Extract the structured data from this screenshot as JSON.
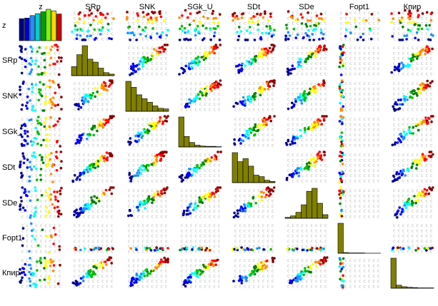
{
  "chart_data": {
    "type": "scatter-matrix",
    "variables": [
      "z",
      "SRp",
      "SNK",
      "SGk_U",
      "SDt",
      "SDe",
      "Fopt1",
      "Кпир"
    ],
    "row_labels": [
      "z",
      "SRp",
      "SNK",
      "SGk_",
      "SDt",
      "SDe",
      "Fopt1",
      "Кпир"
    ],
    "color_variable": "z",
    "color_scale": [
      "#00008b",
      "#0000ff",
      "#1e90ff",
      "#00ffff",
      "#00c000",
      "#008000",
      "#ffff00",
      "#ff8c00",
      "#ff0000",
      "#8b0000"
    ],
    "z_legend_bars": [
      {
        "color": "#000080",
        "height": 0.7
      },
      {
        "color": "#0000cd",
        "height": 0.72
      },
      {
        "color": "#1e90ff",
        "height": 0.8
      },
      {
        "color": "#00ced1",
        "height": 0.86
      },
      {
        "color": "#00a000",
        "height": 0.92
      },
      {
        "color": "#7cfc00",
        "height": 1.0
      },
      {
        "color": "#ffd700",
        "height": 0.95
      },
      {
        "color": "#cd0000",
        "height": 0.85
      }
    ],
    "histograms": {
      "SRp": [
        0.3,
        0.7,
        1.0,
        0.55,
        0.45,
        0.25,
        0.1,
        0.05
      ],
      "SNK": [
        1.0,
        0.8,
        0.55,
        0.42,
        0.3,
        0.18,
        0.1,
        0.08
      ],
      "SGk_U": [
        1.0,
        0.35,
        0.15,
        0.06,
        0.03,
        0.02,
        0.02,
        0.01
      ],
      "SDt": [
        1.0,
        0.7,
        0.8,
        0.55,
        0.25,
        0.2,
        0.08,
        0.04
      ],
      "SDe": [
        0.03,
        0.08,
        0.2,
        0.45,
        0.9,
        1.0,
        0.5,
        0.12
      ],
      "Fopt1": [
        1.0,
        0.02,
        0.01,
        0.01,
        0.01,
        0.0,
        0.0,
        0.0
      ],
      "Кпир": [
        1.0,
        0.1,
        0.05,
        0.03,
        0.02,
        0.01,
        0.01,
        0.01
      ]
    },
    "histogram_color": "#808000",
    "grid_marker_color": "#b4b4b4"
  }
}
